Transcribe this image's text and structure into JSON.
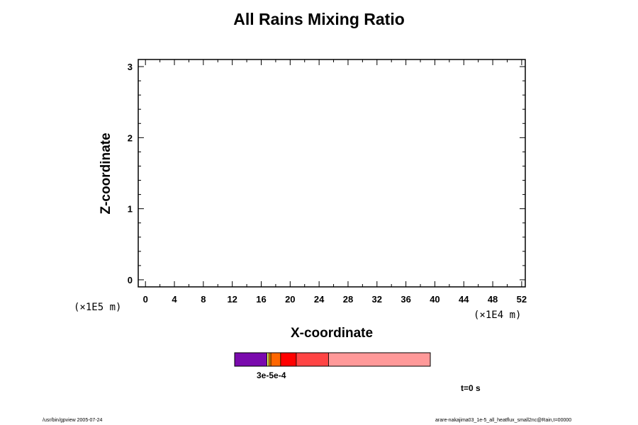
{
  "chart_data": {
    "type": "heatmap",
    "title": "All Rains Mixing Ratio",
    "xlabel": "X-coordinate",
    "ylabel": "Z-coordinate",
    "x_unit": "(×1E4 m)",
    "y_unit": "(×1E5 m)",
    "xlim": [
      -1,
      52.5
    ],
    "ylim": [
      -0.1,
      3.1
    ],
    "x_ticks": [
      0,
      4,
      8,
      12,
      16,
      20,
      24,
      28,
      32,
      36,
      40,
      44,
      48,
      52
    ],
    "y_ticks": [
      0,
      1,
      2,
      3
    ],
    "values": [],
    "colorbar": {
      "colors": [
        "#7a0aad",
        "#ffff66",
        "#ff9900",
        "#ff6600",
        "#ff0000",
        "#ff4444",
        "#ff9999"
      ],
      "fractions": [
        0.165,
        0.01,
        0.01,
        0.05,
        0.08,
        0.165,
        0.52
      ],
      "label": "3e-5e-4"
    },
    "annotation": "t=0 s",
    "grid": false
  },
  "footer": {
    "left": "/usr/bin/gpview 2005-07-24",
    "right": "arare-nakajima03_1e-5_all_heatflux_small2nc@Rain,t=00000"
  }
}
